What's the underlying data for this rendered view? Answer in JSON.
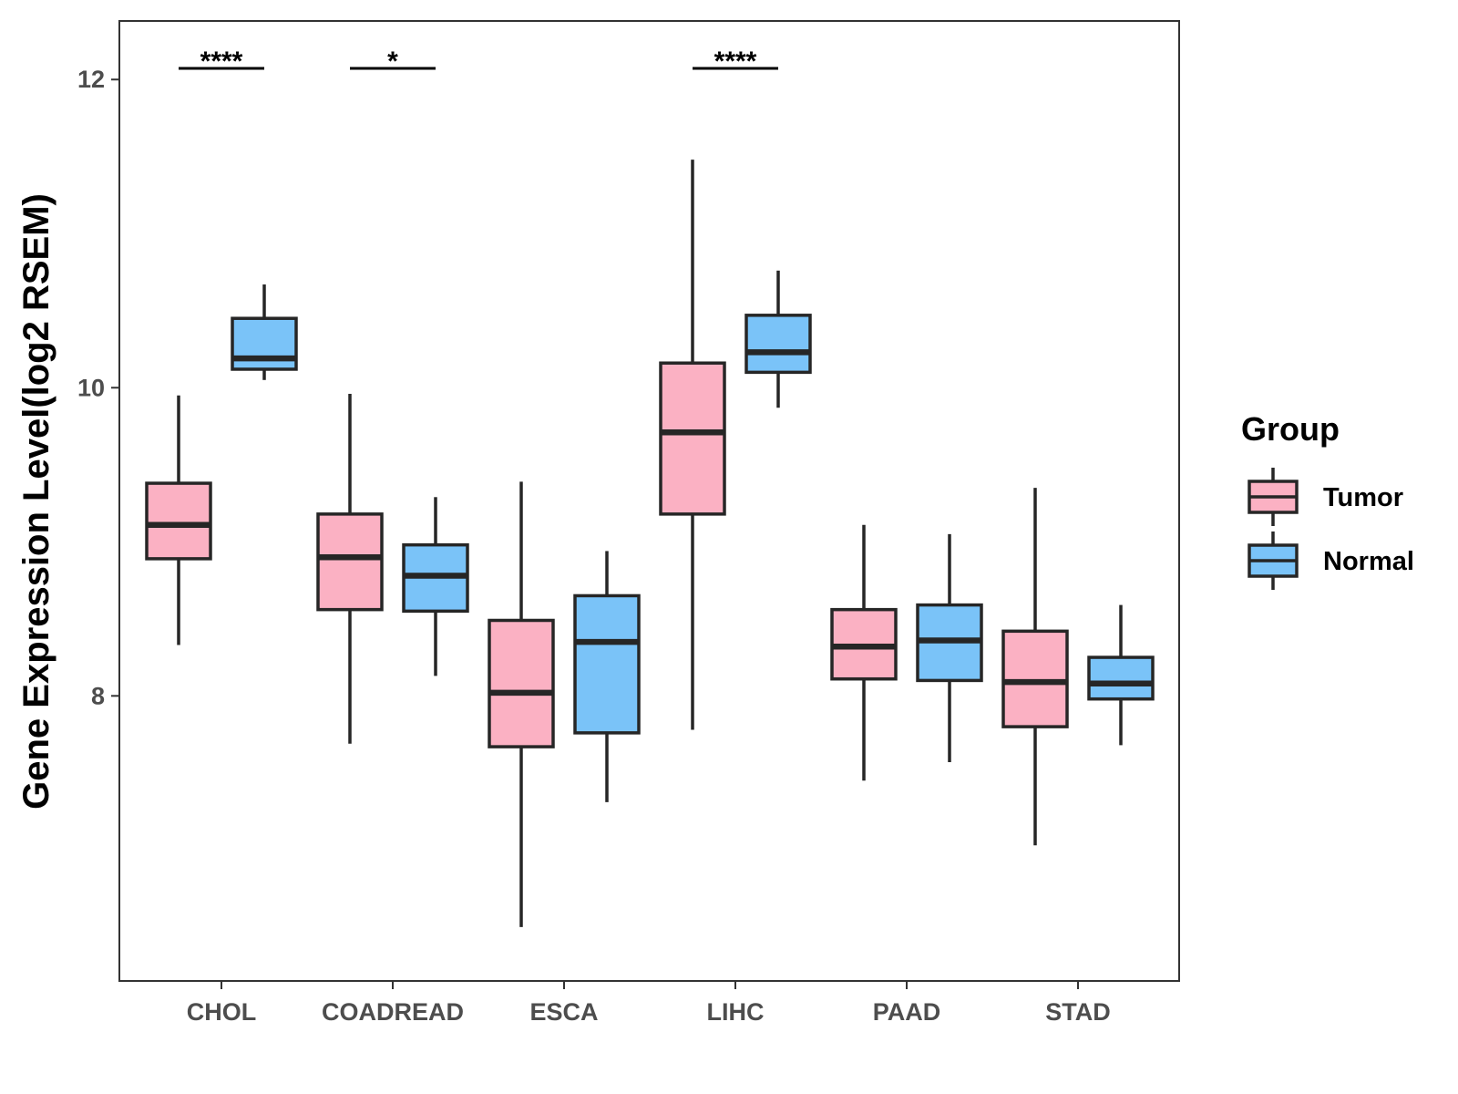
{
  "chart_data": {
    "type": "boxplot",
    "title": "",
    "xlabel": "",
    "ylabel": "Gene Expression Level(log2 RSEM)",
    "ylim": [
      6.15,
      12.38
    ],
    "yticks": [
      8,
      10,
      12
    ],
    "categories": [
      "CHOL",
      "COADREAD",
      "ESCA",
      "LIHC",
      "PAAD",
      "STAD"
    ],
    "legend": {
      "title": "Group",
      "position": "right",
      "entries": [
        {
          "name": "Tumor",
          "color": "#FBB1C3"
        },
        {
          "name": "Normal",
          "color": "#7AC3F8"
        }
      ]
    },
    "series": [
      {
        "name": "Tumor",
        "color": "#FBB1C3",
        "boxes": [
          {
            "category": "CHOL",
            "whisker_low": 8.33,
            "q1": 8.89,
            "median": 9.11,
            "q3": 9.38,
            "whisker_high": 9.95
          },
          {
            "category": "COADREAD",
            "whisker_low": 7.69,
            "q1": 8.56,
            "median": 8.9,
            "q3": 9.18,
            "whisker_high": 9.96
          },
          {
            "category": "ESCA",
            "whisker_low": 6.5,
            "q1": 7.67,
            "median": 8.02,
            "q3": 8.49,
            "whisker_high": 9.39
          },
          {
            "category": "LIHC",
            "whisker_low": 7.78,
            "q1": 9.18,
            "median": 9.71,
            "q3": 10.16,
            "whisker_high": 11.48
          },
          {
            "category": "PAAD",
            "whisker_low": 7.45,
            "q1": 8.11,
            "median": 8.32,
            "q3": 8.56,
            "whisker_high": 9.11
          },
          {
            "category": "STAD",
            "whisker_low": 7.03,
            "q1": 7.8,
            "median": 8.09,
            "q3": 8.42,
            "whisker_high": 9.35
          }
        ]
      },
      {
        "name": "Normal",
        "color": "#7AC3F8",
        "boxes": [
          {
            "category": "CHOL",
            "whisker_low": 10.05,
            "q1": 10.12,
            "median": 10.19,
            "q3": 10.45,
            "whisker_high": 10.67
          },
          {
            "category": "COADREAD",
            "whisker_low": 8.13,
            "q1": 8.55,
            "median": 8.78,
            "q3": 8.98,
            "whisker_high": 9.29
          },
          {
            "category": "ESCA",
            "whisker_low": 7.31,
            "q1": 7.76,
            "median": 8.35,
            "q3": 8.65,
            "whisker_high": 8.94
          },
          {
            "category": "LIHC",
            "whisker_low": 9.87,
            "q1": 10.1,
            "median": 10.23,
            "q3": 10.47,
            "whisker_high": 10.76
          },
          {
            "category": "PAAD",
            "whisker_low": 7.57,
            "q1": 8.1,
            "median": 8.36,
            "q3": 8.59,
            "whisker_high": 9.05
          },
          {
            "category": "STAD",
            "whisker_low": 7.68,
            "q1": 7.98,
            "median": 8.08,
            "q3": 8.25,
            "whisker_high": 8.59
          }
        ]
      }
    ],
    "significance": [
      {
        "category": "CHOL",
        "label": "****"
      },
      {
        "category": "COADREAD",
        "label": "*"
      },
      {
        "category": "LIHC",
        "label": "****"
      }
    ]
  }
}
